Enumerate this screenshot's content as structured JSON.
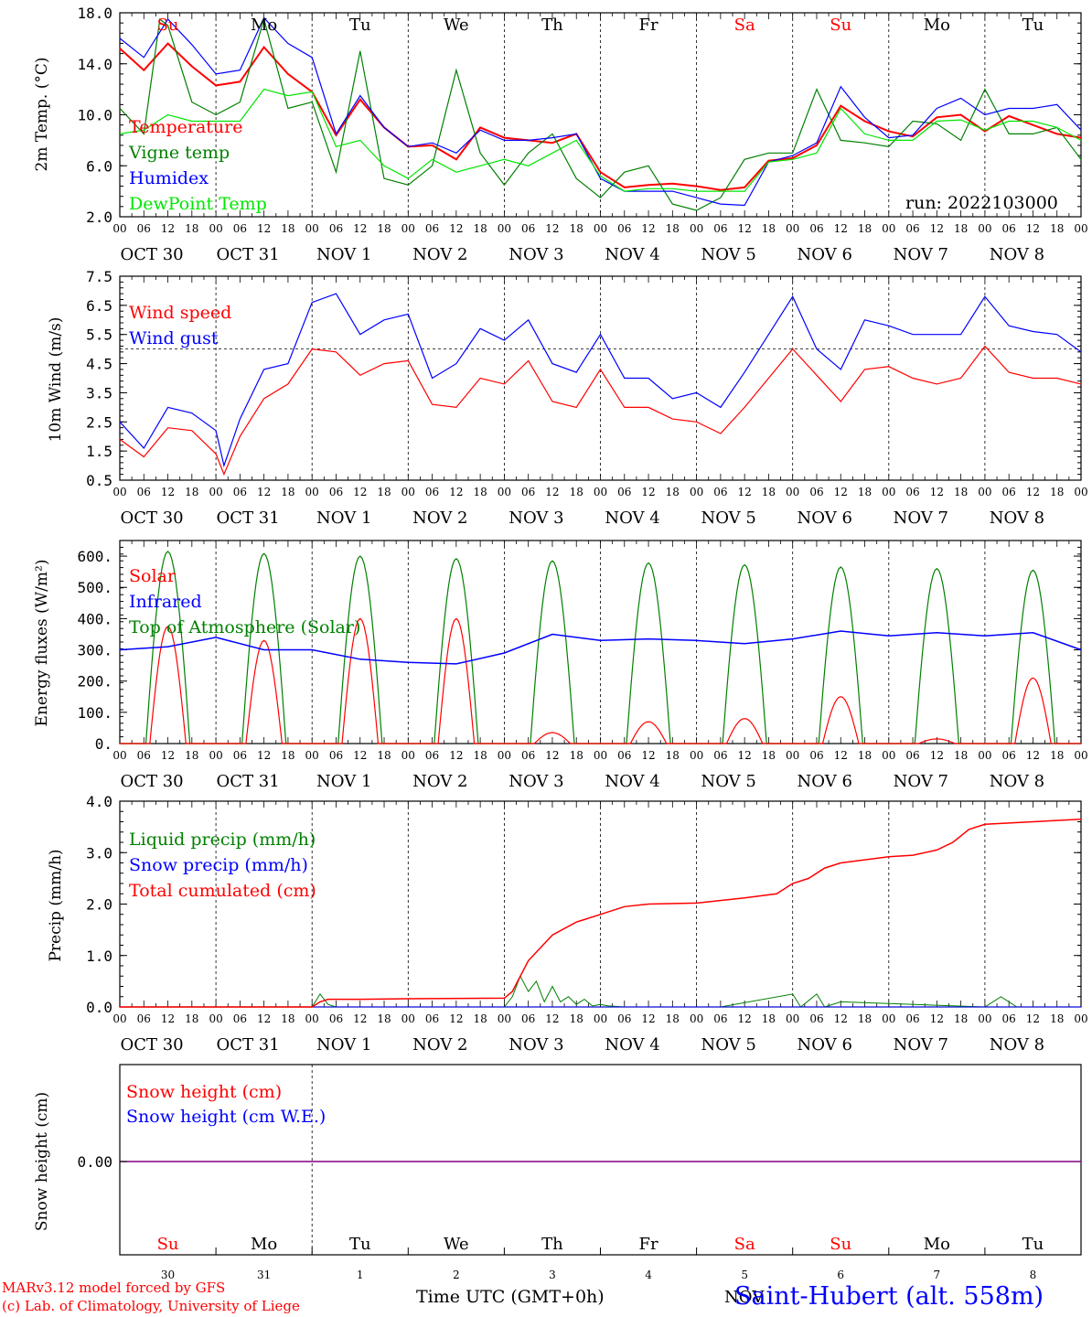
{
  "colors": {
    "red": "#ff0000",
    "green": "#008000",
    "blue": "#0000ff",
    "lime": "#00e600",
    "purple": "#800080"
  },
  "days": [
    "Su",
    "Mo",
    "Tu",
    "We",
    "Th",
    "Fr",
    "Sa",
    "Su",
    "Mo",
    "Tu"
  ],
  "day_colors": [
    "#ff0000",
    "#000000",
    "#000000",
    "#000000",
    "#000000",
    "#000000",
    "#ff0000",
    "#ff0000",
    "#000000",
    "#000000"
  ],
  "dates": [
    "OCT 30",
    "OCT 31",
    "NOV  1",
    "NOV  2",
    "NOV  3",
    "NOV  4",
    "NOV  5",
    "NOV  6",
    "NOV  7",
    "NOV  8"
  ],
  "bottom_dates": [
    "30",
    "31",
    "1",
    "2",
    "3",
    "4",
    "5",
    "6",
    "7",
    "8"
  ],
  "hour_ticks": [
    "00",
    "06",
    "12",
    "18"
  ],
  "hour_end": "00",
  "footer": {
    "model": "MARv3.12 model forced by GFS",
    "lab": "(c) Lab. of Climatology, University of Liege",
    "xlabel": "Time UTC (GMT+0h)",
    "station": "Saint-Hubert (alt. 558m)",
    "month": "NOV"
  },
  "chart_data": [
    {
      "type": "line",
      "ylabel": "2m Temp. (°C)",
      "ylim": [
        2,
        18
      ],
      "yticks": [
        "2.0",
        "6.0",
        "10.0",
        "14.0",
        "18.0"
      ],
      "run": "run: 2022103000",
      "x_unit": "hours since OCT 30 00 UTC",
      "series": [
        {
          "name": "Temperature",
          "color": "#ff0000",
          "x": [
            0,
            6,
            12,
            18,
            24,
            30,
            36,
            42,
            48,
            54,
            60,
            66,
            72,
            78,
            84,
            90,
            96,
            102,
            108,
            114,
            120,
            126,
            132,
            138,
            144,
            150,
            156,
            162,
            168,
            174,
            180,
            186,
            192,
            198,
            204,
            210,
            216,
            222,
            234,
            240
          ],
          "y": [
            15.2,
            13.5,
            15.6,
            13.8,
            12.3,
            12.6,
            15.3,
            13.2,
            11.8,
            8.4,
            11.2,
            9.0,
            7.5,
            7.6,
            6.5,
            9.0,
            8.2,
            8.0,
            7.8,
            8.5,
            5.5,
            4.3,
            4.5,
            4.6,
            4.4,
            4.1,
            4.3,
            6.4,
            6.6,
            7.6,
            10.7,
            9.5,
            8.7,
            8.3,
            9.8,
            10.0,
            8.7,
            9.9,
            8.5,
            8.2
          ]
        },
        {
          "name": "Vigne temp",
          "color": "#008000",
          "x": [
            0,
            6,
            10,
            12,
            18,
            24,
            30,
            36,
            42,
            48,
            54,
            60,
            66,
            72,
            78,
            84,
            90,
            96,
            102,
            108,
            114,
            120,
            126,
            132,
            138,
            144,
            150,
            156,
            162,
            168,
            174,
            180,
            186,
            192,
            198,
            204,
            210,
            216,
            222,
            228,
            234,
            240
          ],
          "y": [
            10.5,
            8.5,
            17.5,
            17.0,
            11.0,
            10.0,
            11.0,
            17.5,
            10.5,
            11.0,
            5.5,
            15.0,
            5.0,
            4.5,
            6.0,
            13.5,
            7.0,
            4.5,
            7.0,
            8.5,
            5.0,
            3.5,
            5.5,
            6.0,
            3.0,
            2.5,
            3.5,
            6.5,
            7.0,
            7.0,
            12.0,
            8.0,
            7.8,
            7.5,
            9.5,
            9.3,
            8.0,
            12.0,
            8.5,
            8.5,
            9.0,
            6.5
          ]
        },
        {
          "name": "Humidex",
          "color": "#0000ff",
          "x": [
            0,
            6,
            12,
            18,
            24,
            30,
            36,
            42,
            48,
            54,
            60,
            66,
            72,
            78,
            84,
            90,
            96,
            102,
            108,
            114,
            120,
            126,
            132,
            138,
            144,
            150,
            156,
            162,
            168,
            174,
            180,
            186,
            192,
            198,
            204,
            210,
            216,
            222,
            228,
            234,
            240
          ],
          "y": [
            16.0,
            14.5,
            17.5,
            15.5,
            13.2,
            13.5,
            17.6,
            15.6,
            14.5,
            8.5,
            11.5,
            9.0,
            7.5,
            7.8,
            7.0,
            8.8,
            8.0,
            8.0,
            8.2,
            8.5,
            5.0,
            4.0,
            4.0,
            4.0,
            3.5,
            3.0,
            2.9,
            6.3,
            6.8,
            7.8,
            12.2,
            9.8,
            8.2,
            8.4,
            10.5,
            11.3,
            10.0,
            10.5,
            10.5,
            10.8,
            8.8
          ]
        },
        {
          "name": "DewPoint Temp",
          "color": "#00e600",
          "x": [
            0,
            6,
            12,
            18,
            24,
            30,
            36,
            42,
            48,
            54,
            60,
            66,
            72,
            78,
            84,
            90,
            96,
            102,
            108,
            114,
            120,
            126,
            132,
            138,
            144,
            150,
            156,
            162,
            168,
            174,
            180,
            186,
            192,
            198,
            204,
            210,
            216,
            222,
            228,
            234,
            240
          ],
          "y": [
            8.5,
            8.8,
            10.0,
            9.5,
            9.5,
            9.5,
            12.0,
            11.5,
            11.8,
            7.5,
            8.0,
            6.0,
            5.0,
            6.5,
            5.5,
            6.0,
            6.5,
            6.0,
            7.0,
            8.0,
            5.2,
            4.0,
            4.2,
            4.2,
            4.0,
            4.0,
            4.0,
            6.3,
            6.5,
            7.0,
            10.5,
            8.5,
            8.0,
            8.0,
            9.5,
            9.6,
            8.8,
            9.5,
            9.5,
            9.0,
            8.0
          ]
        }
      ]
    },
    {
      "type": "line",
      "ylabel": "10m Wind (m/s)",
      "ylim": [
        0.5,
        7.5
      ],
      "yticks": [
        "0.5",
        "1.5",
        "2.5",
        "3.5",
        "4.5",
        "5.5",
        "6.5",
        "7.5"
      ],
      "hline": 5.0,
      "series": [
        {
          "name": "Wind speed",
          "color": "#ff0000",
          "x": [
            0,
            6,
            12,
            18,
            24,
            26,
            30,
            36,
            42,
            48,
            54,
            60,
            66,
            72,
            78,
            84,
            90,
            96,
            102,
            108,
            114,
            120,
            126,
            132,
            138,
            144,
            150,
            156,
            162,
            168,
            174,
            180,
            186,
            192,
            198,
            204,
            210,
            216,
            222,
            228,
            234,
            240
          ],
          "y": [
            1.9,
            1.3,
            2.3,
            2.2,
            1.4,
            0.7,
            2.0,
            3.3,
            3.8,
            5.0,
            4.9,
            4.1,
            4.5,
            4.6,
            3.1,
            3.0,
            4.0,
            3.8,
            4.6,
            3.2,
            3.0,
            4.3,
            3.0,
            3.0,
            2.6,
            2.5,
            2.1,
            3.0,
            4.0,
            5.0,
            4.1,
            3.2,
            4.3,
            4.4,
            4.0,
            3.8,
            4.0,
            5.1,
            4.2,
            4.0,
            4.0,
            3.8
          ]
        },
        {
          "name": "Wind gust",
          "color": "#0000ff",
          "x": [
            0,
            6,
            12,
            18,
            24,
            26,
            30,
            36,
            42,
            48,
            54,
            60,
            66,
            72,
            78,
            84,
            90,
            96,
            102,
            108,
            114,
            120,
            126,
            132,
            138,
            144,
            150,
            156,
            162,
            168,
            174,
            180,
            186,
            192,
            198,
            204,
            210,
            216,
            222,
            228,
            234,
            240
          ],
          "y": [
            2.5,
            1.6,
            3.0,
            2.8,
            2.2,
            1.0,
            2.6,
            4.3,
            4.5,
            6.6,
            6.9,
            5.5,
            6.0,
            6.2,
            4.0,
            4.5,
            5.7,
            5.3,
            6.0,
            4.5,
            4.2,
            5.5,
            4.0,
            4.0,
            3.3,
            3.5,
            3.0,
            4.2,
            5.5,
            6.8,
            5.0,
            4.3,
            6.0,
            5.8,
            5.5,
            5.5,
            5.5,
            6.8,
            5.8,
            5.6,
            5.5,
            4.9
          ]
        }
      ]
    },
    {
      "type": "line",
      "ylabel": "Energy fluxes (W/m²)",
      "ylim": [
        0,
        650
      ],
      "yticks": [
        "0.",
        "100.",
        "200.",
        "300.",
        "400.",
        "500.",
        "600."
      ],
      "series": [
        {
          "name": "Solar",
          "color": "#ff0000",
          "peaks": [
            375,
            330,
            400,
            400,
            35,
            70,
            80,
            150,
            15,
            210
          ]
        },
        {
          "name": "Infrared",
          "color": "#0000ff",
          "x": [
            0,
            12,
            24,
            36,
            48,
            60,
            72,
            84,
            96,
            108,
            120,
            132,
            144,
            156,
            168,
            180,
            192,
            204,
            216,
            228,
            240
          ],
          "y": [
            300,
            310,
            340,
            300,
            300,
            270,
            260,
            255,
            290,
            350,
            330,
            335,
            330,
            320,
            335,
            360,
            345,
            355,
            345,
            355,
            300
          ]
        },
        {
          "name": "Top of Atmosphere (Solar)",
          "color": "#008000",
          "peaks": [
            615,
            608,
            600,
            592,
            585,
            578,
            572,
            565,
            560,
            555
          ]
        }
      ]
    },
    {
      "type": "line",
      "ylabel": "Precip (mm/h)",
      "ylim": [
        0,
        4
      ],
      "yticks": [
        "0.0",
        "1.0",
        "2.0",
        "3.0",
        "4.0"
      ],
      "series": [
        {
          "name": "Liquid precip (mm/h)",
          "color": "#008000",
          "x": [
            0,
            48,
            50,
            52,
            54,
            56,
            96,
            98,
            100,
            102,
            104,
            106,
            108,
            110,
            112,
            114,
            116,
            118,
            120,
            122,
            126,
            150,
            168,
            170,
            174,
            176,
            180,
            216,
            218,
            220,
            222,
            224,
            240
          ],
          "y": [
            0,
            0,
            0.25,
            0.05,
            0,
            0,
            0,
            0.2,
            0.6,
            0.3,
            0.5,
            0.1,
            0.4,
            0.1,
            0.2,
            0.05,
            0.15,
            0.02,
            0.05,
            0.02,
            0,
            0,
            0.25,
            0,
            0.25,
            0,
            0.1,
            0,
            0.1,
            0.2,
            0.1,
            0,
            0
          ]
        },
        {
          "name": "Snow precip (mm/h)",
          "color": "#0000ff",
          "x": [
            0,
            240
          ],
          "y": [
            0,
            0
          ]
        },
        {
          "name": "Total cumulated (cm)",
          "color": "#ff0000",
          "x": [
            0,
            48,
            50,
            52,
            60,
            72,
            96,
            98,
            102,
            108,
            114,
            120,
            126,
            132,
            144,
            156,
            164,
            168,
            172,
            176,
            180,
            192,
            198,
            204,
            208,
            212,
            216,
            228,
            240
          ],
          "y": [
            0,
            0,
            0.1,
            0.15,
            0.15,
            0.16,
            0.17,
            0.3,
            0.9,
            1.4,
            1.65,
            1.8,
            1.95,
            2.0,
            2.02,
            2.12,
            2.2,
            2.4,
            2.5,
            2.7,
            2.8,
            2.92,
            2.95,
            3.05,
            3.2,
            3.45,
            3.55,
            3.6,
            3.65
          ]
        }
      ]
    },
    {
      "type": "line",
      "ylabel": "Snow height (cm)",
      "ytick": "0.00",
      "series": [
        {
          "name": "Snow height (cm)",
          "color": "#ff0000"
        },
        {
          "name": "Snow height (cm W.E.)",
          "color": "#0000ff"
        }
      ]
    }
  ]
}
